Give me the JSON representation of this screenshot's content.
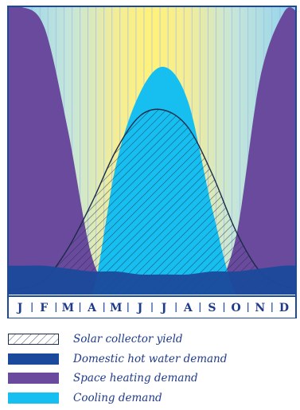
{
  "chart_data": {
    "type": "area",
    "months": [
      "J",
      "F",
      "M",
      "A",
      "M",
      "J",
      "J",
      "A",
      "S",
      "O",
      "N",
      "D"
    ],
    "series": [
      {
        "key": "space_heating",
        "name": "Space heating demand",
        "color": "#6a4a9c",
        "values": [
          1.0,
          0.93,
          0.57,
          0.13,
          0.0,
          0.0,
          0.0,
          0.0,
          0.0,
          0.2,
          0.75,
          0.98
        ]
      },
      {
        "key": "cooling",
        "name": "Cooling demand",
        "color": "#16bff0",
        "values": [
          0.0,
          0.0,
          0.0,
          0.0,
          0.45,
          0.7,
          0.79,
          0.67,
          0.3,
          0.0,
          0.0,
          0.0
        ]
      },
      {
        "key": "solar_yield",
        "name": "Solar collector yield",
        "color": "#1a2a4a",
        "pattern": "hatched",
        "values": [
          0.02,
          0.05,
          0.16,
          0.32,
          0.5,
          0.62,
          0.64,
          0.58,
          0.42,
          0.22,
          0.08,
          0.03
        ]
      },
      {
        "key": "dhw",
        "name": "Domestic hot water demand",
        "color": "#1b4a9c",
        "values": [
          0.1,
          0.1,
          0.09,
          0.08,
          0.08,
          0.07,
          0.07,
          0.07,
          0.08,
          0.08,
          0.09,
          0.1
        ]
      }
    ],
    "ylim": [
      0,
      1
    ],
    "background": "vertical gradient: blue in winter, yellow in summer",
    "legend_position": "bottom"
  },
  "legend": {
    "solar": "Solar collector yield",
    "dhw": "Domestic hot water demand",
    "heating": "Space heating demand",
    "cooling": "Cooling demand"
  },
  "colors": {
    "frame": "#1b4a9c",
    "month_text": "#1e3a8a",
    "sky_blue": "#8fd3ef",
    "sun_yellow": "#fdf07a"
  }
}
